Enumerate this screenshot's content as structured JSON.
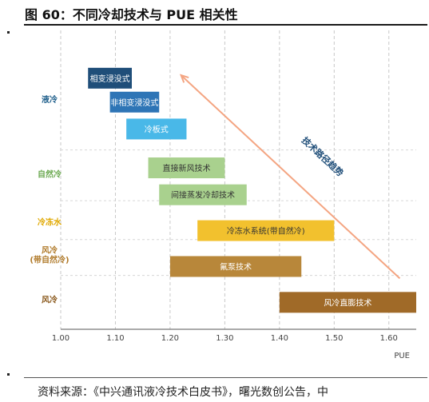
{
  "figure": {
    "title": "图 60：不同冷却技术与 PUE 相关性",
    "source": "资料来源：《中兴通讯液冷技术白皮书》，曙光数创公告，中"
  },
  "chart_data": {
    "type": "bar",
    "orientation": "horizontal-range",
    "title": "",
    "xlabel": "PUE",
    "xlim": [
      1.0,
      1.65
    ],
    "x_ticks": [
      "1.00",
      "1.10",
      "1.20",
      "1.30",
      "1.40",
      "1.50",
      "1.60"
    ],
    "grid": "vertical dashed",
    "categories": [
      {
        "label": "液冷",
        "color": "#1f5f8b",
        "y": 0.23
      },
      {
        "label": "自然冷",
        "color": "#6aa84f",
        "y": 0.48
      },
      {
        "label": "冷冻水",
        "color": "#e0a800",
        "y": 0.64
      },
      {
        "label": "风冷\n(带自然冷)",
        "color": "#b07a2a",
        "y": 0.75
      },
      {
        "label": "风冷",
        "color": "#8b5a1e",
        "y": 0.9
      }
    ],
    "bars": [
      {
        "label": "相变浸没式",
        "category": "液冷",
        "start": 1.05,
        "end": 1.13,
        "color": "#1f4e79",
        "text_color": "#ffffff"
      },
      {
        "label": "非相变浸没式",
        "category": "液冷",
        "start": 1.09,
        "end": 1.18,
        "color": "#2e75b6",
        "text_color": "#ffffff"
      },
      {
        "label": "冷板式",
        "category": "液冷",
        "start": 1.12,
        "end": 1.23,
        "color": "#49b8e8",
        "text_color": "#ffffff"
      },
      {
        "label": "直接新风技术",
        "category": "自然冷",
        "start": 1.16,
        "end": 1.3,
        "color": "#a9d18e",
        "text_color": "#333333"
      },
      {
        "label": "间接蒸发冷却技术",
        "category": "自然冷",
        "start": 1.18,
        "end": 1.34,
        "color": "#a9d18e",
        "text_color": "#333333"
      },
      {
        "label": "冷冻水系统(带自然冷)",
        "category": "冷冻水",
        "start": 1.25,
        "end": 1.5,
        "color": "#f2c12e",
        "text_color": "#333333"
      },
      {
        "label": "氟泵技术",
        "category": "风冷\n(带自然冷)",
        "start": 1.2,
        "end": 1.44,
        "color": "#b8873a",
        "text_color": "#ffffff"
      },
      {
        "label": "风冷直膨技术",
        "category": "风冷",
        "start": 1.4,
        "end": 1.65,
        "color": "#a06a28",
        "text_color": "#ffffff"
      }
    ],
    "annotation": {
      "text": "技术路径趋势",
      "color": "#1f4e79",
      "arrow_color": "#f4a582",
      "arrow_from": [
        1.62,
        0.83
      ],
      "arrow_to": [
        1.22,
        0.15
      ]
    }
  }
}
